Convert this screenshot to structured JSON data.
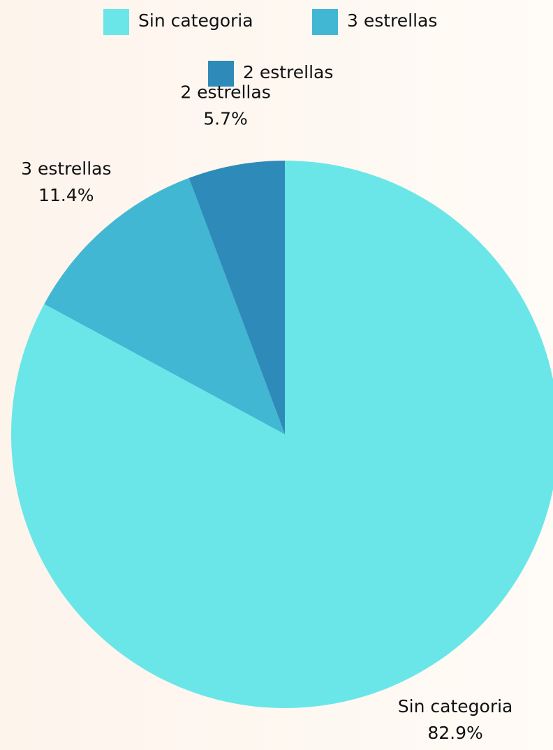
{
  "chart_data": {
    "type": "pie",
    "categories": [
      "Sin categoria",
      "3 estrellas",
      "2 estrellas"
    ],
    "values": [
      82.9,
      11.4,
      5.7
    ],
    "value_labels": [
      "82.9%",
      "11.4%",
      "5.7%"
    ],
    "colors": [
      "#6ae6e8",
      "#42b7d4",
      "#2e8bb9"
    ],
    "legend": "top"
  }
}
